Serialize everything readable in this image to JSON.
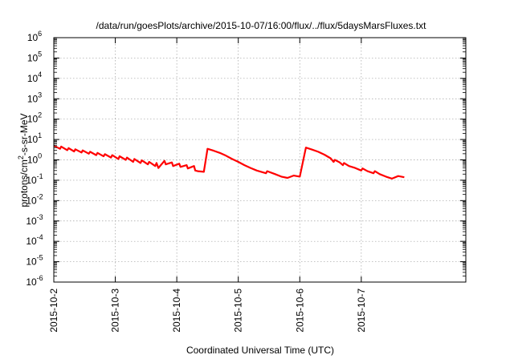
{
  "chart_data": {
    "type": "line",
    "title": "/data/run/goesPlots/archive/2015-10-07/16:00/flux/../flux/5daysMarsFluxes.txt",
    "xlabel": "Coordinated Universal Time (UTC)",
    "ylabel_base": "protons/cm",
    "ylabel_sup": "2",
    "ylabel_rest": "-s-sr-MeV",
    "xlim": [
      0,
      6.7
    ],
    "ylim_log10": [
      -6,
      6
    ],
    "y_scale": "log",
    "grid": true,
    "x_tick_labels": [
      {
        "x": 0,
        "label": "2015-10-2"
      },
      {
        "x": 1,
        "label": "2015-10-3"
      },
      {
        "x": 2,
        "label": "2015-10-4"
      },
      {
        "x": 3,
        "label": "2015-10-5"
      },
      {
        "x": 4,
        "label": "2015-10-6"
      },
      {
        "x": 5,
        "label": "2015-10-7"
      }
    ],
    "y_tick_labels": [
      {
        "exp": 6,
        "label": "10",
        "sup": "6"
      },
      {
        "exp": 5,
        "label": "10",
        "sup": "5"
      },
      {
        "exp": 4,
        "label": "10",
        "sup": "4"
      },
      {
        "exp": 3,
        "label": "10",
        "sup": "3"
      },
      {
        "exp": 2,
        "label": "10",
        "sup": "2"
      },
      {
        "exp": 1,
        "label": "10",
        "sup": "1"
      },
      {
        "exp": 0,
        "label": "10",
        "sup": "0"
      },
      {
        "exp": -1,
        "label": "10",
        "sup": "-1"
      },
      {
        "exp": -2,
        "label": "10",
        "sup": "-2"
      },
      {
        "exp": -3,
        "label": "10",
        "sup": "-3"
      },
      {
        "exp": -4,
        "label": "10",
        "sup": "-4"
      },
      {
        "exp": -5,
        "label": "10",
        "sup": "-5"
      },
      {
        "exp": -6,
        "label": "10",
        "sup": "-6"
      }
    ],
    "series": [
      {
        "color": "#ff0000",
        "x": [
          0.0,
          0.1,
          0.12,
          0.22,
          0.24,
          0.33,
          0.35,
          0.45,
          0.47,
          0.57,
          0.59,
          0.69,
          0.71,
          0.81,
          0.83,
          0.93,
          0.95,
          1.05,
          1.07,
          1.17,
          1.19,
          1.29,
          1.31,
          1.41,
          1.43,
          1.53,
          1.55,
          1.65,
          1.67,
          1.7,
          1.8,
          1.82,
          1.92,
          1.94,
          2.04,
          2.06,
          2.16,
          2.18,
          2.28,
          2.3,
          2.34,
          2.44,
          2.5,
          2.6,
          2.7,
          2.8,
          2.9,
          3.0,
          3.1,
          3.2,
          3.3,
          3.45,
          3.47,
          3.6,
          3.7,
          3.8,
          3.9,
          4.0,
          4.1,
          4.2,
          4.3,
          4.4,
          4.5,
          4.55,
          4.57,
          4.65,
          4.7,
          4.72,
          4.8,
          4.9,
          5.0,
          5.02,
          5.1,
          5.2,
          5.22,
          5.3,
          5.4,
          5.5,
          5.6,
          5.7
        ],
        "y": [
          5.0,
          3.5,
          4.5,
          3.0,
          3.8,
          2.6,
          3.3,
          2.3,
          2.9,
          2.0,
          2.5,
          1.7,
          2.2,
          1.5,
          1.9,
          1.3,
          1.7,
          1.1,
          1.5,
          1.0,
          1.3,
          0.8,
          1.1,
          0.7,
          0.95,
          0.6,
          0.8,
          0.5,
          0.7,
          0.4,
          0.9,
          0.6,
          0.75,
          0.5,
          0.65,
          0.45,
          0.55,
          0.38,
          0.5,
          0.3,
          0.28,
          0.26,
          3.5,
          2.8,
          2.2,
          1.6,
          1.1,
          0.8,
          0.55,
          0.4,
          0.3,
          0.22,
          0.28,
          0.2,
          0.15,
          0.13,
          0.17,
          0.15,
          4.0,
          3.2,
          2.5,
          1.8,
          1.2,
          0.8,
          1.0,
          0.75,
          0.55,
          0.7,
          0.5,
          0.4,
          0.3,
          0.38,
          0.28,
          0.22,
          0.28,
          0.2,
          0.15,
          0.12,
          0.16,
          0.14
        ]
      }
    ]
  }
}
